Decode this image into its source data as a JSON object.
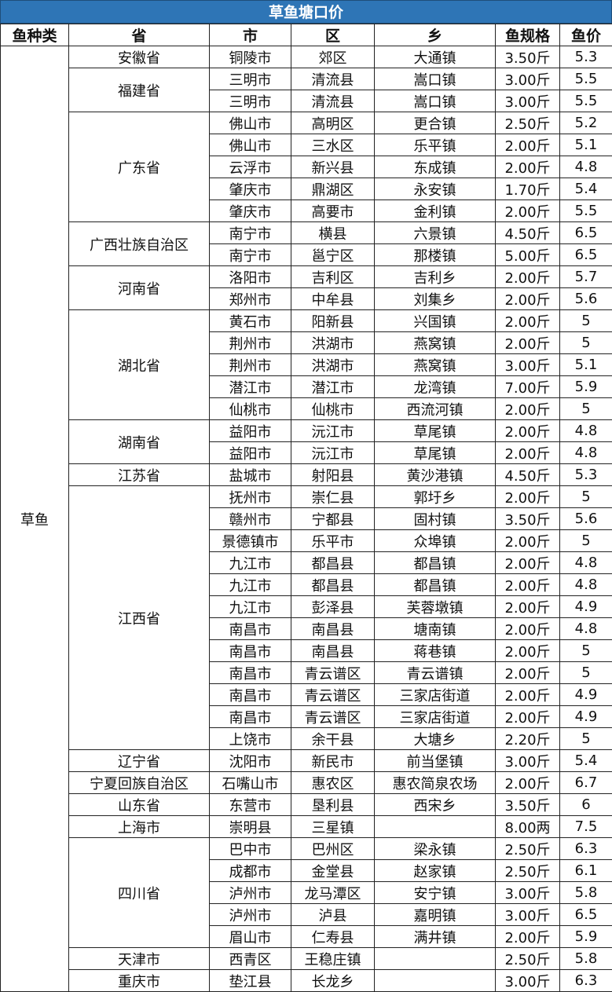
{
  "title": "草鱼塘口价",
  "headers": [
    "鱼种类",
    "省",
    "市",
    "区",
    "乡",
    "鱼规格",
    "鱼价"
  ],
  "fish_type": "草鱼",
  "groups": [
    {
      "province": "安徽省",
      "rows": [
        [
          "铜陵市",
          "郊区",
          "大通镇",
          "3.50斤",
          "5.3"
        ]
      ]
    },
    {
      "province": "福建省",
      "rows": [
        [
          "三明市",
          "清流县",
          "嵩口镇",
          "3.00斤",
          "5.5"
        ],
        [
          "三明市",
          "清流县",
          "嵩口镇",
          "3.00斤",
          "5.5"
        ]
      ]
    },
    {
      "province": "广东省",
      "rows": [
        [
          "佛山市",
          "高明区",
          "更合镇",
          "2.50斤",
          "5.2"
        ],
        [
          "佛山市",
          "三水区",
          "乐平镇",
          "2.00斤",
          "5.1"
        ],
        [
          "云浮市",
          "新兴县",
          "东成镇",
          "2.00斤",
          "4.8"
        ],
        [
          "肇庆市",
          "鼎湖区",
          "永安镇",
          "1.70斤",
          "5.4"
        ],
        [
          "肇庆市",
          "高要市",
          "金利镇",
          "2.00斤",
          "5.5"
        ]
      ]
    },
    {
      "province": "广西壮族自治区",
      "rows": [
        [
          "南宁市",
          "横县",
          "六景镇",
          "4.50斤",
          "6.5"
        ],
        [
          "南宁市",
          "邕宁区",
          "那楼镇",
          "5.00斤",
          "6.5"
        ]
      ]
    },
    {
      "province": "河南省",
      "rows": [
        [
          "洛阳市",
          "吉利区",
          "吉利乡",
          "2.00斤",
          "5.7"
        ],
        [
          "郑州市",
          "中牟县",
          "刘集乡",
          "2.00斤",
          "5.6"
        ]
      ]
    },
    {
      "province": "湖北省",
      "rows": [
        [
          "黄石市",
          "阳新县",
          "兴国镇",
          "2.00斤",
          "5"
        ],
        [
          "荆州市",
          "洪湖市",
          "燕窝镇",
          "2.00斤",
          "5"
        ],
        [
          "荆州市",
          "洪湖市",
          "燕窝镇",
          "3.00斤",
          "5.1"
        ],
        [
          "潜江市",
          "潜江市",
          "龙湾镇",
          "7.00斤",
          "5.9"
        ],
        [
          "仙桃市",
          "仙桃市",
          "西流河镇",
          "2.00斤",
          "5"
        ]
      ]
    },
    {
      "province": "湖南省",
      "rows": [
        [
          "益阳市",
          "沅江市",
          "草尾镇",
          "2.00斤",
          "4.8"
        ],
        [
          "益阳市",
          "沅江市",
          "草尾镇",
          "2.00斤",
          "4.8"
        ]
      ]
    },
    {
      "province": "江苏省",
      "rows": [
        [
          "盐城市",
          "射阳县",
          "黄沙港镇",
          "4.50斤",
          "5.3"
        ]
      ]
    },
    {
      "province": "江西省",
      "rows": [
        [
          "抚州市",
          "崇仁县",
          "郭圩乡",
          "2.00斤",
          "5"
        ],
        [
          "赣州市",
          "宁都县",
          "固村镇",
          "3.50斤",
          "5.6"
        ],
        [
          "景德镇市",
          "乐平市",
          "众埠镇",
          "2.00斤",
          "5"
        ],
        [
          "九江市",
          "都昌县",
          "都昌镇",
          "2.00斤",
          "4.8"
        ],
        [
          "九江市",
          "都昌县",
          "都昌镇",
          "2.00斤",
          "4.8"
        ],
        [
          "九江市",
          "彭泽县",
          "芙蓉墩镇",
          "2.00斤",
          "4.9"
        ],
        [
          "南昌市",
          "南昌县",
          "塘南镇",
          "2.00斤",
          "4.8"
        ],
        [
          "南昌市",
          "南昌县",
          "蒋巷镇",
          "2.00斤",
          "5"
        ],
        [
          "南昌市",
          "青云谱区",
          "青云谱镇",
          "2.00斤",
          "5"
        ],
        [
          "南昌市",
          "青云谱区",
          "三家店街道",
          "2.00斤",
          "4.9"
        ],
        [
          "南昌市",
          "青云谱区",
          "三家店街道",
          "2.00斤",
          "4.9"
        ],
        [
          "上饶市",
          "余干县",
          "大塘乡",
          "2.20斤",
          "5"
        ]
      ]
    },
    {
      "province": "辽宁省",
      "rows": [
        [
          "沈阳市",
          "新民市",
          "前当堡镇",
          "3.00斤",
          "5.4"
        ]
      ]
    },
    {
      "province": "宁夏回族自治区",
      "rows": [
        [
          "石嘴山市",
          "惠农区",
          "惠农简泉农场",
          "2.00斤",
          "6.7"
        ]
      ]
    },
    {
      "province": "山东省",
      "rows": [
        [
          "东营市",
          "垦利县",
          "西宋乡",
          "3.50斤",
          "6"
        ]
      ]
    },
    {
      "province": "上海市",
      "rows": [
        [
          "崇明县",
          "三星镇",
          "",
          "8.00两",
          "7.5"
        ]
      ]
    },
    {
      "province": "四川省",
      "rows": [
        [
          "巴中市",
          "巴州区",
          "梁永镇",
          "2.50斤",
          "6.3"
        ],
        [
          "成都市",
          "金堂县",
          "赵家镇",
          "2.50斤",
          "6.1"
        ],
        [
          "泸州市",
          "龙马潭区",
          "安宁镇",
          "3.00斤",
          "5.8"
        ],
        [
          "泸州市",
          "泸县",
          "嘉明镇",
          "3.00斤",
          "6.5"
        ],
        [
          "眉山市",
          "仁寿县",
          "满井镇",
          "2.00斤",
          "5.9"
        ]
      ]
    },
    {
      "province": "天津市",
      "rows": [
        [
          "西青区",
          "王稳庄镇",
          "",
          "2.50斤",
          "5.8"
        ]
      ]
    },
    {
      "province": "重庆市",
      "rows": [
        [
          "垫江县",
          "长龙乡",
          "",
          "3.00斤",
          "6.3"
        ]
      ]
    }
  ]
}
